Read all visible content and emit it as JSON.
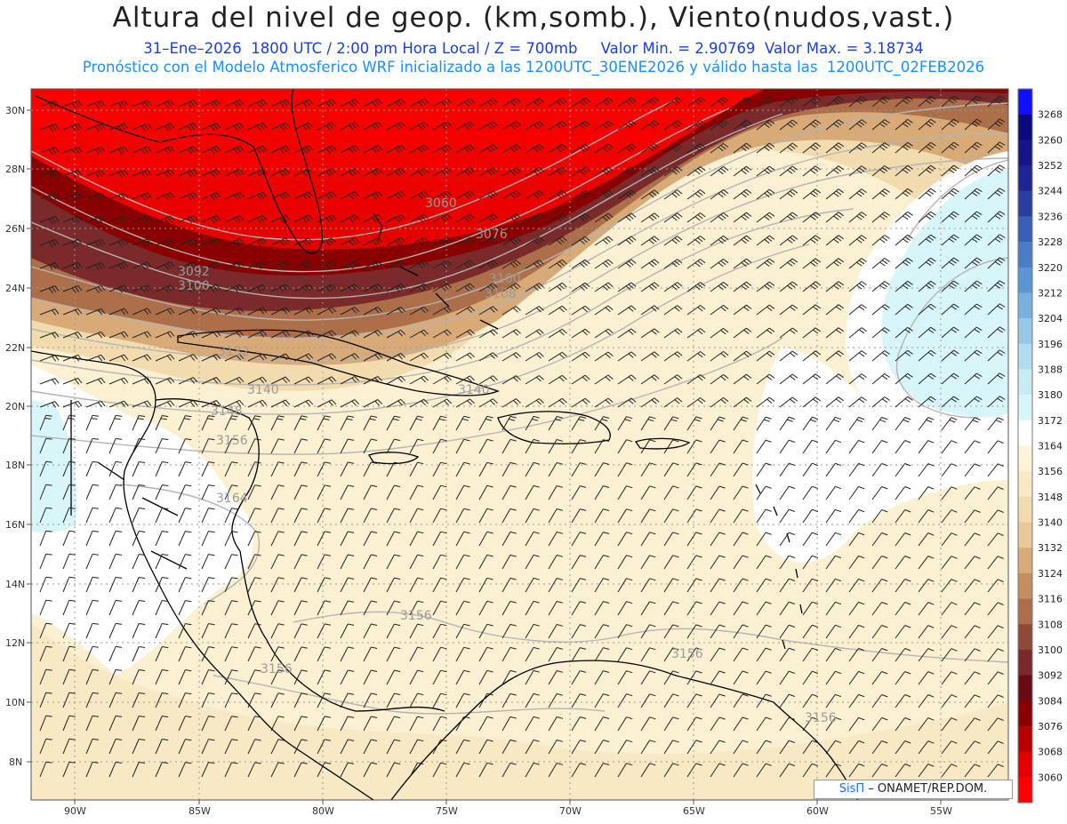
{
  "header": {
    "title": "Altura del nivel de geop. (km,somb.), Viento(nudos,vast.)",
    "subtitle_1": "31–Ene–2026  1800 UTC / 2:00 pm Hora Local / Z = 700mb     Valor Min. = 2.90769  Valor Max. = 3.18734",
    "subtitle_2": "Pronóstico con el Modelo Atmosferico WRF inicializado a las 1200UTC_30ENE2026 y válido hasta las  1200UTC_02FEB2026"
  },
  "map": {
    "lat_labels": [
      "30N",
      "28N",
      "26N",
      "24N",
      "22N",
      "20N",
      "18N",
      "16N",
      "14N",
      "12N",
      "10N",
      "8N"
    ],
    "lon_labels": [
      "90W",
      "85W",
      "80W",
      "75W",
      "70W",
      "65W",
      "60W",
      "55W"
    ],
    "contour_labels": [
      "3060",
      "3076",
      "3092",
      "3100",
      "3100",
      "3108",
      "3132",
      "3140",
      "3140",
      "3148",
      "3156",
      "3164",
      "3156",
      "3156",
      "3156",
      "3156"
    ]
  },
  "colorbar": {
    "levels": [
      "3268",
      "3260",
      "3252",
      "3244",
      "3236",
      "3228",
      "3220",
      "3212",
      "3204",
      "3196",
      "3188",
      "3180",
      "3172",
      "3164",
      "3156",
      "3148",
      "3140",
      "3132",
      "3124",
      "3116",
      "3108",
      "3100",
      "3092",
      "3084",
      "3076",
      "3068",
      "3060"
    ],
    "colors": [
      "#1010ff",
      "#0a0a7a",
      "#151585",
      "#1e2590",
      "#2a3ea0",
      "#3a5fb8",
      "#4a7cc8",
      "#5a96d4",
      "#7ab0de",
      "#96c8e8",
      "#b4dcf0",
      "#c8ecf4",
      "#d8f6fa",
      "#ffffff",
      "#fdf3d8",
      "#f8e8c4",
      "#f2dcaf",
      "#e8c898",
      "#d8aa78",
      "#c48e60",
      "#ad6e4a",
      "#8e4a36",
      "#7a2a2a",
      "#6a0a12",
      "#8a0000",
      "#b80000",
      "#e20000",
      "#ff0000"
    ]
  },
  "credit": {
    "brand": "SisΠ",
    "text": " – ONAMET/REP.DOM."
  }
}
